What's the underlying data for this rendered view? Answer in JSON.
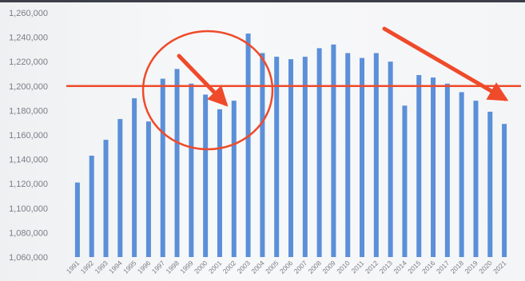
{
  "chart_data": {
    "type": "bar",
    "title": "",
    "xlabel": "",
    "ylabel": "",
    "ylim": [
      1060000,
      1260000
    ],
    "y_ticks": [
      "1,260,000",
      "1,240,000",
      "1,220,000",
      "1,200,000",
      "1,180,000",
      "1,160,000",
      "1,140,000",
      "1,120,000",
      "1,100,000",
      "1,080,000",
      "1,060,000"
    ],
    "categories": [
      "1991",
      "1992",
      "1993",
      "1994",
      "1995",
      "1996",
      "1997",
      "1998",
      "1999",
      "2000",
      "2001",
      "2002",
      "2003",
      "2004",
      "2005",
      "2006",
      "2007",
      "2008",
      "2009",
      "2010",
      "2011",
      "2012",
      "2013",
      "2014",
      "2015",
      "2016",
      "2017",
      "2018",
      "2019",
      "2020",
      "2021"
    ],
    "values": [
      1121000,
      1143000,
      1156000,
      1173000,
      1190000,
      1171000,
      1206000,
      1214000,
      1202000,
      1193000,
      1181000,
      1188000,
      1243000,
      1227000,
      1224000,
      1222000,
      1224000,
      1231000,
      1234000,
      1227000,
      1223000,
      1227000,
      1220000,
      1184000,
      1209000,
      1207000,
      1202000,
      1195000,
      1188000,
      1179000,
      1169000
    ],
    "bar_color": "#5b8fd8",
    "grid": false,
    "legend": "none",
    "annotations": {
      "reference_line_value": 1200000,
      "reference_line_color": "#ef4a2a",
      "circle_color": "#ef4a2a",
      "arrow_color": "#ef4a2a"
    }
  }
}
